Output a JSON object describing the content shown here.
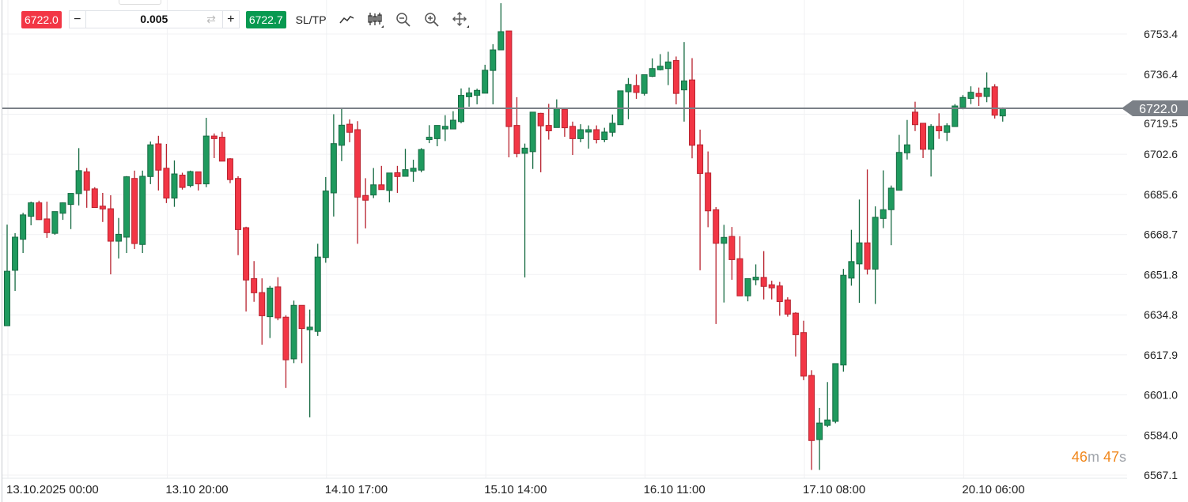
{
  "toolbar": {
    "sell_price": "6722.0",
    "quantity": "0.005",
    "minus_label": "−",
    "plus_label": "+",
    "buy_price": "6722.7",
    "sltp_label": "SL/TP",
    "icons": [
      "line-chart-icon",
      "candlestick-icon",
      "zoom-out-icon",
      "zoom-in-icon",
      "move-icon",
      "swap-icon"
    ]
  },
  "countdown": {
    "minutes": "46",
    "minutes_unit": "m",
    "seconds": "47",
    "seconds_unit": "s"
  },
  "colors": {
    "up": "#1f9a5e",
    "down": "#f23645",
    "price_line": "#7b8087",
    "countdown": "#f0861a"
  },
  "chart_data": {
    "type": "candlestick",
    "current_price": 6722.0,
    "current_price_label": "6722.0",
    "ylim": [
      6567.1,
      6753.4
    ],
    "y_ticks": [
      "6753.4",
      "6736.4",
      "6719.5",
      "6702.6",
      "6685.6",
      "6668.7",
      "6651.8",
      "6634.8",
      "6617.9",
      "6601.0",
      "6584.0",
      "6567.1"
    ],
    "x_tick_labels": [
      {
        "index": 0,
        "label": "13.10.2025 00:00"
      },
      {
        "index": 20,
        "label": "13.10 20:00"
      },
      {
        "index": 40,
        "label": "14.10 17:00"
      },
      {
        "index": 60,
        "label": "15.10 14:00"
      },
      {
        "index": 80,
        "label": "16.10 11:00"
      },
      {
        "index": 100,
        "label": "17.10 08:00"
      },
      {
        "index": 120,
        "label": "20.10 06:00"
      }
    ],
    "grid": true,
    "ohlc": [
      [
        6630.2,
        6672.9,
        6630.2,
        6653.2
      ],
      [
        6653.6,
        6669.3,
        6644.9,
        6667.6
      ],
      [
        6666.7,
        6677.9,
        6660.9,
        6677.0
      ],
      [
        6676.4,
        6682.6,
        6672.6,
        6682.1
      ],
      [
        6682.1,
        6683.0,
        6674.9,
        6675.0
      ],
      [
        6675.3,
        6682.6,
        6667.3,
        6669.5
      ],
      [
        6669.2,
        6678.3,
        6668.6,
        6678.4
      ],
      [
        6677.7,
        6682.3,
        6674.9,
        6682.1
      ],
      [
        6681.4,
        6686.0,
        6671.0,
        6686.1
      ],
      [
        6686.0,
        6705.2,
        6681.0,
        6695.7
      ],
      [
        6695.2,
        6696.8,
        6680.0,
        6687.4
      ],
      [
        6688.0,
        6688.7,
        6680.0,
        6680.1
      ],
      [
        6680.7,
        6686.3,
        6674.0,
        6679.5
      ],
      [
        6679.6,
        6685.3,
        6651.9,
        6665.9
      ],
      [
        6665.9,
        6675.7,
        6658.6,
        6668.8
      ],
      [
        6667.6,
        6693.4,
        6660.9,
        6693.1
      ],
      [
        6692.4,
        6695.7,
        6662.6,
        6664.9
      ],
      [
        6664.5,
        6695.7,
        6660.9,
        6693.3
      ],
      [
        6693.2,
        6708.0,
        6690.0,
        6706.6
      ],
      [
        6707.0,
        6710.4,
        6687.3,
        6695.9
      ],
      [
        6696.7,
        6707.0,
        6682.0,
        6684.1
      ],
      [
        6684.1,
        6700.0,
        6680.4,
        6694.3
      ],
      [
        6693.8,
        6694.8,
        6687.7,
        6688.6
      ],
      [
        6689.4,
        6695.7,
        6688.6,
        6695.3
      ],
      [
        6695.2,
        6695.3,
        6687.3,
        6690.1
      ],
      [
        6690.1,
        6718.0,
        6688.7,
        6710.3
      ],
      [
        6710.3,
        6711.4,
        6701.0,
        6709.2
      ],
      [
        6709.8,
        6712.1,
        6699.7,
        6699.7
      ],
      [
        6700.7,
        6701.0,
        6690.4,
        6691.9
      ],
      [
        6692.4,
        6693.3,
        6660.0,
        6670.8
      ],
      [
        6671.6,
        6672.0,
        6636.2,
        6649.5
      ],
      [
        6650.1,
        6657.5,
        6640.3,
        6644.1
      ],
      [
        6644.2,
        6650.2,
        6622.2,
        6634.4
      ],
      [
        6634.0,
        6647.0,
        6625.0,
        6646.1
      ],
      [
        6646.6,
        6650.7,
        6632.5,
        6633.5
      ],
      [
        6633.8,
        6634.6,
        6603.9,
        6615.8
      ],
      [
        6616.2,
        6640.8,
        6614.4,
        6638.8
      ],
      [
        6638.8,
        6638.8,
        6614.4,
        6629.0
      ],
      [
        6628.5,
        6637.0,
        6591.5,
        6629.6
      ],
      [
        6627.8,
        6664.8,
        6625.9,
        6659.2
      ],
      [
        6659.0,
        6693.0,
        6656.8,
        6687.1
      ],
      [
        6686.3,
        6719.5,
        6676.3,
        6707.1
      ],
      [
        6706.4,
        6722.1,
        6699.7,
        6714.9
      ],
      [
        6715.3,
        6717.3,
        6707.7,
        6711.9
      ],
      [
        6713.0,
        6716.6,
        6664.8,
        6684.5
      ],
      [
        6685.2,
        6692.5,
        6671.3,
        6683.2
      ],
      [
        6685.4,
        6696.8,
        6684.1,
        6689.7
      ],
      [
        6689.7,
        6697.7,
        6687.7,
        6687.7
      ],
      [
        6687.3,
        6694.7,
        6682.3,
        6694.7
      ],
      [
        6694.8,
        6697.7,
        6686.3,
        6693.2
      ],
      [
        6693.3,
        6704.9,
        6693.3,
        6696.1
      ],
      [
        6695.4,
        6700.3,
        6691.0,
        6696.7
      ],
      [
        6695.9,
        6705.2,
        6695.0,
        6704.6
      ],
      [
        6708.8,
        6714.9,
        6707.3,
        6709.8
      ],
      [
        6709.2,
        6714.8,
        6706.0,
        6714.8
      ],
      [
        6713.3,
        6719.1,
        6708.2,
        6714.4
      ],
      [
        6713.3,
        6720.8,
        6713.3,
        6717.0
      ],
      [
        6716.4,
        6730.4,
        6715.7,
        6727.5
      ],
      [
        6726.9,
        6730.8,
        6722.7,
        6728.5
      ],
      [
        6727.5,
        6730.3,
        6723.7,
        6729.6
      ],
      [
        6728.4,
        6740.4,
        6728.4,
        6738.1
      ],
      [
        6738.0,
        6749.1,
        6723.7,
        6746.7
      ],
      [
        6746.7,
        6766.4,
        6746.7,
        6754.4
      ],
      [
        6754.7,
        6754.7,
        6701.3,
        6714.3
      ],
      [
        6714.8,
        6726.7,
        6701.3,
        6702.9
      ],
      [
        6703.0,
        6707.1,
        6650.6,
        6705.2
      ],
      [
        6703.7,
        6720.4,
        6696.4,
        6720.4
      ],
      [
        6719.9,
        6720.1,
        6695.0,
        6714.6
      ],
      [
        6714.8,
        6723.9,
        6708.8,
        6712.5
      ],
      [
        6713.9,
        6725.8,
        6713.9,
        6722.1
      ],
      [
        6721.5,
        6721.5,
        6710.0,
        6713.8
      ],
      [
        6714.4,
        6716.4,
        6702.3,
        6709.2
      ],
      [
        6709.2,
        6715.3,
        6707.7,
        6713.0
      ],
      [
        6712.0,
        6714.8,
        6705.0,
        6713.0
      ],
      [
        6713.0,
        6714.8,
        6707.2,
        6708.8
      ],
      [
        6708.8,
        6713.8,
        6707.7,
        6712.0
      ],
      [
        6711.9,
        6719.4,
        6710.1,
        6715.7
      ],
      [
        6715.1,
        6729.4,
        6715.1,
        6729.4
      ],
      [
        6729.0,
        6734.8,
        6717.4,
        6732.1
      ],
      [
        6731.6,
        6736.3,
        6726.0,
        6728.7
      ],
      [
        6728.3,
        6736.2,
        6727.4,
        6736.2
      ],
      [
        6735.5,
        6743.1,
        6735.2,
        6738.8
      ],
      [
        6738.3,
        6744.9,
        6738.0,
        6739.8
      ],
      [
        6738.8,
        6745.9,
        6731.8,
        6741.6
      ],
      [
        6742.2,
        6743.9,
        6723.7,
        6728.3
      ],
      [
        6729.8,
        6750.0,
        6716.4,
        6733.6
      ],
      [
        6734.0,
        6743.2,
        6700.9,
        6706.4
      ],
      [
        6706.6,
        6713.0,
        6653.6,
        6694.5
      ],
      [
        6694.7,
        6703.8,
        6671.8,
        6678.7
      ],
      [
        6679.2,
        6680.3,
        6630.9,
        6665.0
      ],
      [
        6665.0,
        6672.8,
        6640.0,
        6667.5
      ],
      [
        6667.9,
        6671.9,
        6649.6,
        6658.1
      ],
      [
        6658.5,
        6668.0,
        6642.8,
        6642.8
      ],
      [
        6642.8,
        6650.1,
        6640.5,
        6650.1
      ],
      [
        6649.6,
        6656.1,
        6647.3,
        6650.7
      ],
      [
        6650.6,
        6661.7,
        6641.3,
        6646.8
      ],
      [
        6647.5,
        6649.2,
        6641.3,
        6646.2
      ],
      [
        6647.0,
        6648.7,
        6634.4,
        6640.4
      ],
      [
        6641.1,
        6642.2,
        6634.0,
        6635.1
      ],
      [
        6635.5,
        6635.9,
        6617.2,
        6626.4
      ],
      [
        6627.3,
        6632.3,
        6607.2,
        6608.9
      ],
      [
        6609.2,
        6611.4,
        6569.3,
        6581.7
      ],
      [
        6582.1,
        6595.5,
        6569.3,
        6589.1
      ],
      [
        6588.1,
        6606.4,
        6587.4,
        6590.4
      ],
      [
        6589.8,
        6614.2,
        6589.0,
        6614.2
      ],
      [
        6613.6,
        6654.2,
        6610.8,
        6651.5
      ],
      [
        6650.3,
        6670.7,
        6647.1,
        6657.3
      ],
      [
        6656.3,
        6683.5,
        6639.9,
        6665.2
      ],
      [
        6665.2,
        6696.2,
        6651.8,
        6654.1
      ],
      [
        6654.1,
        6680.6,
        6639.4,
        6676.0
      ],
      [
        6675.5,
        6695.8,
        6671.4,
        6679.2
      ],
      [
        6679.2,
        6689.4,
        6664.2,
        6688.3
      ],
      [
        6687.4,
        6710.8,
        6687.4,
        6703.4
      ],
      [
        6703.2,
        6717.1,
        6700.4,
        6706.6
      ],
      [
        6720.4,
        6724.8,
        6712.4,
        6715.1
      ],
      [
        6715.7,
        6715.7,
        6701.0,
        6704.7
      ],
      [
        6704.7,
        6715.3,
        6693.2,
        6714.4
      ],
      [
        6714.4,
        6719.9,
        6709.1,
        6712.5
      ],
      [
        6711.9,
        6715.7,
        6708.2,
        6714.7
      ],
      [
        6714.3,
        6723.8,
        6714.3,
        6723.0
      ],
      [
        6722.4,
        6727.6,
        6721.6,
        6726.6
      ],
      [
        6726.2,
        6731.3,
        6723.8,
        6728.8
      ],
      [
        6728.3,
        6730.8,
        6723.0,
        6727.0
      ],
      [
        6727.0,
        6737.2,
        6724.6,
        6730.6
      ],
      [
        6731.1,
        6732.2,
        6717.7,
        6719.1
      ],
      [
        6718.8,
        6722.4,
        6716.4,
        6722.0
      ]
    ]
  }
}
